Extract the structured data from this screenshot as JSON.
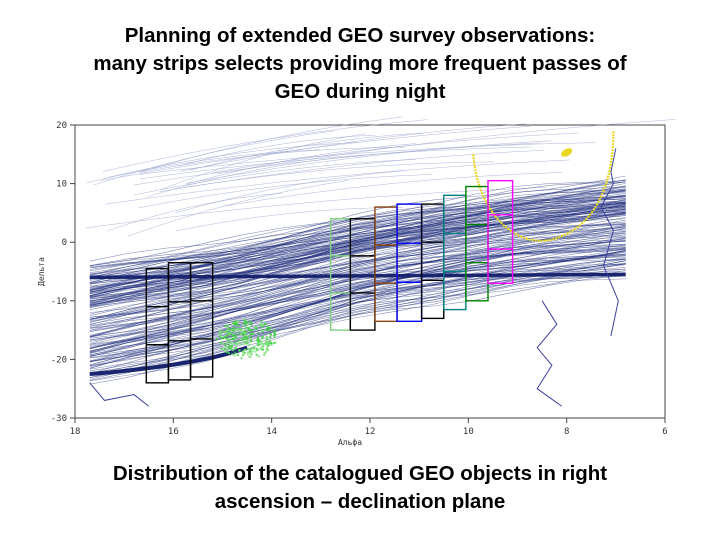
{
  "title": {
    "line1": "Planning of extended GEO survey observations:",
    "line2": "many strips selects providing more frequent passes of",
    "line3": "GEO during night"
  },
  "caption": {
    "line1": "Distribution of the catalogued GEO objects in right",
    "line2": "ascension – declination plane"
  },
  "chart_data": {
    "type": "scatter",
    "title": "",
    "xlabel": "Альфа",
    "ylabel": "Дельта",
    "xlim": [
      18,
      6
    ],
    "ylim": [
      -30,
      20
    ],
    "x_ticks": [
      18,
      16,
      14,
      12,
      10,
      8,
      6
    ],
    "y_ticks": [
      20,
      10,
      0,
      -10,
      -20,
      -30
    ],
    "geo_band": {
      "name": "catalogued GEO object tracks",
      "color": "#1c2a7a",
      "center_line": [
        [
          17.7,
          -6
        ],
        [
          6.8,
          -5.5
        ]
      ],
      "upper_edge": [
        [
          17.7,
          -4.5
        ],
        [
          15,
          -1
        ],
        [
          12,
          4
        ],
        [
          9,
          8
        ],
        [
          6.8,
          10
        ]
      ],
      "lower_edge": [
        [
          17.7,
          -23
        ],
        [
          15,
          -18
        ],
        [
          12,
          -11
        ],
        [
          9,
          -7
        ],
        [
          6.8,
          -5
        ]
      ]
    },
    "survey_strips": [
      {
        "name": "strip-1",
        "color": "#000000",
        "ra_range": [
          16.55,
          16.1
        ],
        "dec_range": [
          -24,
          -4.5
        ]
      },
      {
        "name": "strip-2",
        "color": "#000000",
        "ra_range": [
          16.1,
          15.65
        ],
        "dec_range": [
          -23.5,
          -3.5
        ]
      },
      {
        "name": "strip-3",
        "color": "#000000",
        "ra_range": [
          15.65,
          15.2
        ],
        "dec_range": [
          -23,
          -3.5
        ]
      },
      {
        "name": "strip-4",
        "color": "#80d080",
        "ra_range": [
          12.8,
          12.4
        ],
        "dec_range": [
          -15,
          4
        ]
      },
      {
        "name": "strip-5",
        "color": "#000000",
        "ra_range": [
          12.4,
          11.9
        ],
        "dec_range": [
          -15,
          4
        ]
      },
      {
        "name": "strip-6",
        "color": "#8b4513",
        "ra_range": [
          11.9,
          11.45
        ],
        "dec_range": [
          -13.5,
          6
        ]
      },
      {
        "name": "strip-7",
        "color": "#0000ff",
        "ra_range": [
          11.45,
          10.95
        ],
        "dec_range": [
          -13.5,
          6.5
        ]
      },
      {
        "name": "strip-8",
        "color": "#000000",
        "ra_range": [
          10.95,
          10.5
        ],
        "dec_range": [
          -13,
          6.5
        ]
      },
      {
        "name": "strip-9",
        "color": "#008080",
        "ra_range": [
          10.5,
          10.05
        ],
        "dec_range": [
          -11.5,
          8
        ]
      },
      {
        "name": "strip-10",
        "color": "#008000",
        "ra_range": [
          10.05,
          9.6
        ],
        "dec_range": [
          -10,
          9.5
        ]
      },
      {
        "name": "strip-11",
        "color": "#ff00ff",
        "ra_range": [
          9.6,
          9.1
        ],
        "dec_range": [
          -7,
          10.5
        ]
      }
    ],
    "green_cluster": {
      "name": "dense green object cluster",
      "center": [
        14.5,
        -16.5
      ]
    },
    "yellow_track": {
      "name": "yellow arc",
      "color": "#e8d820"
    }
  }
}
